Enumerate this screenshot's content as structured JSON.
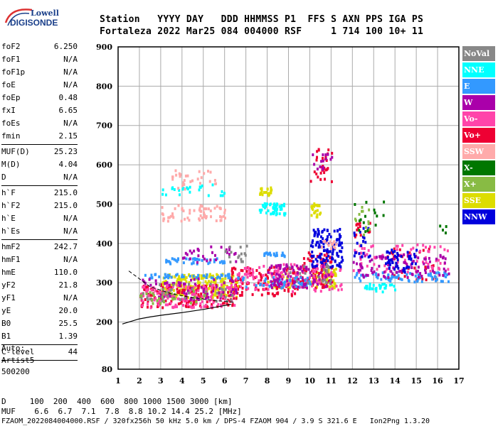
{
  "logo": {
    "line1": "Lowell",
    "line2": "DIGISONDE"
  },
  "header": {
    "row1": "Station   YYYY DAY   DDD HHMMSS P1  FFS S AXN PPS IGA PS",
    "row2": "Fortaleza 2022 Mar25 084 004000 RSF     1 714 100 10+ 11"
  },
  "params_groups": [
    [
      [
        "foF2",
        "6.250"
      ],
      [
        "foF1",
        "N/A"
      ],
      [
        "foF1p",
        "N/A"
      ],
      [
        "foE",
        "N/A"
      ],
      [
        "foEp",
        "0.48"
      ],
      [
        "fxI",
        "6.65"
      ],
      [
        "foEs",
        "N/A"
      ],
      [
        "fmin",
        "2.15"
      ]
    ],
    [
      [
        "MUF(D)",
        "25.23"
      ],
      [
        "M(D)",
        "4.04"
      ],
      [
        "D",
        "N/A"
      ]
    ],
    [
      [
        "h`F",
        "215.0"
      ],
      [
        "h`F2",
        "215.0"
      ],
      [
        "h`E",
        "N/A"
      ],
      [
        "h`Es",
        "N/A"
      ]
    ],
    [
      [
        "hmF2",
        "242.7"
      ],
      [
        "hmF1",
        "N/A"
      ],
      [
        "hmE",
        "110.0"
      ],
      [
        "yF2",
        "21.8"
      ],
      [
        "yF1",
        "N/A"
      ],
      [
        "yE",
        "20.0"
      ],
      [
        "B0",
        "25.5"
      ],
      [
        "B1",
        "1.39"
      ]
    ],
    [
      [
        "C-level",
        "44"
      ]
    ]
  ],
  "autoscale": {
    "line1": "Auto:",
    "line2": "Artist5",
    "line3": "500200"
  },
  "legend": [
    {
      "label": "NoVal",
      "color": "#888888"
    },
    {
      "label": "NNE",
      "color": "#00ffff"
    },
    {
      "label": "E",
      "color": "#3399ff"
    },
    {
      "label": "W",
      "color": "#aa00aa"
    },
    {
      "label": "Vo-",
      "color": "#ff44aa"
    },
    {
      "label": "Vo+",
      "color": "#ee0033"
    },
    {
      "label": "SSW",
      "color": "#ffaaaa"
    },
    {
      "label": "X-",
      "color": "#007700"
    },
    {
      "label": "X+",
      "color": "#88bb44"
    },
    {
      "label": "SSE",
      "color": "#dddd00"
    },
    {
      "label": "NNW",
      "color": "#0000dd"
    }
  ],
  "footer": {
    "line1": "D     100  200  400  600  800 1000 1500 3000 [km]",
    "line2": "MUF    6.6  6.7  7.1  7.8  8.8 10.2 14.4 25.2 [MHz]",
    "line3": "FZAOM_2022084004000.RSF / 320fx256h 50 kHz 5.0 km / DPS-4 FZAOM 904 / 3.9 S 321.6 E   Ion2Png 1.3.20"
  },
  "chart_data": {
    "type": "scatter",
    "xlim": [
      1,
      17
    ],
    "ylim": [
      80,
      900
    ],
    "x_ticks": [
      1,
      2,
      3,
      4,
      5,
      6,
      7,
      8,
      9,
      10,
      11,
      12,
      13,
      14,
      15,
      16,
      17
    ],
    "y_ticks": [
      80,
      200,
      300,
      400,
      500,
      600,
      700,
      800,
      900
    ],
    "grid": true,
    "legend_position": "right",
    "profile_curve": [
      [
        1.2,
        195
      ],
      [
        1.5,
        200
      ],
      [
        2,
        208
      ],
      [
        2.5,
        213
      ],
      [
        3,
        217
      ],
      [
        4,
        224
      ],
      [
        5,
        232
      ],
      [
        6,
        242
      ],
      [
        6.3,
        245
      ]
    ],
    "trace_curve": [
      [
        1.5,
        330
      ],
      [
        2.5,
        290
      ],
      [
        3.5,
        272
      ],
      [
        4.5,
        262
      ],
      [
        5.5,
        255
      ],
      [
        6.5,
        250
      ]
    ],
    "series": [
      {
        "name": "SSE",
        "clusters": [
          [
            3.0,
            6.6,
            265,
            325,
            220
          ],
          [
            8.0,
            9.2,
            290,
            330,
            30
          ],
          [
            10.0,
            10.5,
            470,
            505,
            20
          ],
          [
            7.5,
            8.2,
            525,
            545,
            20
          ],
          [
            10.0,
            11.2,
            290,
            340,
            60
          ]
        ]
      },
      {
        "name": "Vo+",
        "clusters": [
          [
            2.0,
            6.6,
            240,
            300,
            160
          ],
          [
            6.2,
            9.5,
            270,
            345,
            120
          ],
          [
            9.5,
            11.0,
            290,
            380,
            90
          ],
          [
            10.0,
            11.0,
            560,
            650,
            30
          ],
          [
            12.0,
            12.8,
            420,
            460,
            15
          ],
          [
            13.5,
            16.0,
            310,
            390,
            35
          ]
        ]
      },
      {
        "name": "Vo-",
        "clusters": [
          [
            2.0,
            6.6,
            240,
            300,
            140
          ],
          [
            6.5,
            11.5,
            280,
            350,
            120
          ],
          [
            12.0,
            16.5,
            330,
            400,
            70
          ]
        ]
      },
      {
        "name": "E",
        "clusters": [
          [
            2.2,
            6.3,
            315,
            325,
            45
          ],
          [
            3.0,
            6.0,
            350,
            365,
            40
          ],
          [
            6.5,
            10.0,
            290,
            320,
            50
          ],
          [
            12.0,
            16.5,
            305,
            330,
            70
          ],
          [
            7.8,
            8.8,
            370,
            380,
            20
          ]
        ]
      },
      {
        "name": "NNE",
        "clusters": [
          [
            7.6,
            8.8,
            475,
            505,
            50
          ],
          [
            3.0,
            6.0,
            525,
            560,
            25
          ],
          [
            12.5,
            14.0,
            280,
            300,
            30
          ]
        ]
      },
      {
        "name": "W",
        "clusters": [
          [
            2.0,
            6.6,
            260,
            315,
            60
          ],
          [
            8.0,
            11.0,
            290,
            350,
            90
          ],
          [
            12.0,
            16.5,
            315,
            375,
            90
          ],
          [
            10.0,
            11.0,
            590,
            630,
            15
          ],
          [
            4.0,
            6.5,
            355,
            395,
            30
          ]
        ]
      },
      {
        "name": "NNW",
        "clusters": [
          [
            10.0,
            11.5,
            340,
            440,
            120
          ],
          [
            13.5,
            15.0,
            330,
            390,
            50
          ],
          [
            12.0,
            12.8,
            360,
            450,
            20
          ]
        ]
      },
      {
        "name": "SSW",
        "clusters": [
          [
            3.0,
            6.0,
            460,
            500,
            60
          ],
          [
            3.5,
            5.6,
            540,
            590,
            30
          ],
          [
            10.5,
            11.2,
            390,
            410,
            15
          ]
        ]
      },
      {
        "name": "NoVal",
        "clusters": [
          [
            2.0,
            6.5,
            255,
            300,
            40
          ],
          [
            6.0,
            7.0,
            350,
            400,
            15
          ],
          [
            9.0,
            11.0,
            300,
            360,
            20
          ]
        ]
      },
      {
        "name": "X-",
        "clusters": [
          [
            12.0,
            13.5,
            430,
            510,
            15
          ],
          [
            16.0,
            16.5,
            430,
            450,
            4
          ]
        ]
      },
      {
        "name": "X+",
        "clusters": [
          [
            2.0,
            5.0,
            250,
            290,
            25
          ],
          [
            12.0,
            13.0,
            420,
            500,
            12
          ]
        ]
      }
    ]
  }
}
